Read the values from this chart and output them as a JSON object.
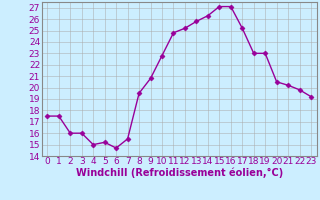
{
  "x": [
    0,
    1,
    2,
    3,
    4,
    5,
    6,
    7,
    8,
    9,
    10,
    11,
    12,
    13,
    14,
    15,
    16,
    17,
    18,
    19,
    20,
    21,
    22,
    23
  ],
  "y": [
    17.5,
    17.5,
    16.0,
    16.0,
    15.0,
    15.2,
    14.7,
    15.5,
    19.5,
    20.8,
    22.8,
    24.8,
    25.2,
    25.8,
    26.3,
    27.1,
    27.1,
    25.2,
    23.0,
    23.0,
    20.5,
    20.2,
    19.8,
    19.2
  ],
  "line_color": "#990099",
  "marker": "D",
  "markersize": 2.5,
  "linewidth": 1,
  "bg_color": "#cceeff",
  "grid_color": "#aaaaaa",
  "xlabel": "Windchill (Refroidissement éolien,°C)",
  "xlabel_fontsize": 7,
  "tick_fontsize": 6.5,
  "xlim": [
    -0.5,
    23.5
  ],
  "ylim": [
    14,
    27.5
  ],
  "yticks": [
    14,
    15,
    16,
    17,
    18,
    19,
    20,
    21,
    22,
    23,
    24,
    25,
    26,
    27
  ],
  "xticks": [
    0,
    1,
    2,
    3,
    4,
    5,
    6,
    7,
    8,
    9,
    10,
    11,
    12,
    13,
    14,
    15,
    16,
    17,
    18,
    19,
    20,
    21,
    22,
    23
  ]
}
